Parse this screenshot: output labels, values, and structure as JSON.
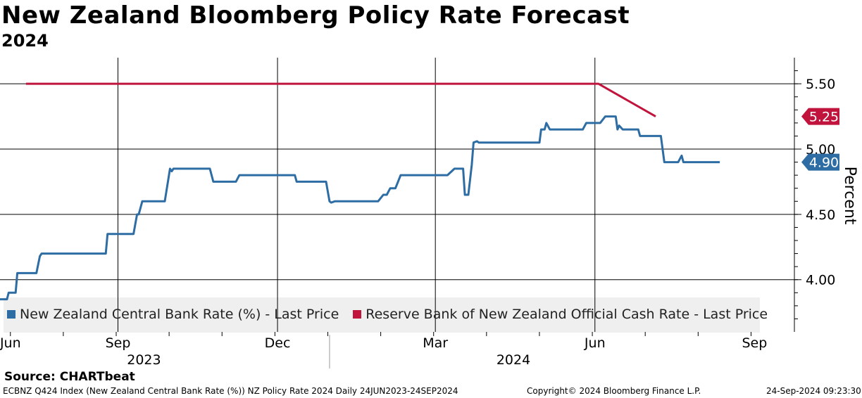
{
  "header": {
    "title": "New Zealand Bloomberg Policy Rate Forecast",
    "subtitle": "2024"
  },
  "source_label": "Source:  CHARTbeat",
  "footer": {
    "left": "ECBNZ Q424 Index (New Zealand Central Bank Rate (%)) NZ Policy Rate 2024  Daily 24JUN2023-24SEP2024",
    "middle": "Copyright© 2024 Bloomberg Finance L.P.",
    "right": "24-Sep-2024 09:23:30"
  },
  "colors": {
    "blue": "#2e6da4",
    "red": "#c0143c",
    "grid": "#000000",
    "legend_bg": "#efefef"
  },
  "chart_data": {
    "type": "line",
    "title": "New Zealand Bloomberg Policy Rate Forecast",
    "subtitle": "2024",
    "ylabel": "Percent",
    "ylim": [
      3.6,
      5.7
    ],
    "y_axis_side": "right",
    "y_ticks": [
      4.0,
      4.5,
      5.0,
      5.5
    ],
    "y_tick_labels": [
      "4.00",
      "4.50",
      "5.00",
      "5.50"
    ],
    "xlim": [
      0,
      458
    ],
    "x_ticks": [
      {
        "label": "Jun",
        "day": 6
      },
      {
        "label": "Sep",
        "day": 68
      },
      {
        "label": "Dec",
        "day": 160
      },
      {
        "label": "Mar",
        "day": 251
      },
      {
        "label": "Jun",
        "day": 343
      },
      {
        "label": "Sep",
        "day": 435
      }
    ],
    "year_labels": [
      {
        "label": "2023",
        "day": 83
      },
      {
        "label": "2024",
        "day": 296
      }
    ],
    "year_divider_day": 190,
    "vertical_grid_days": [
      68,
      160,
      251,
      343
    ],
    "series": [
      {
        "name": "New Zealand Central Bank Rate (%) - Last Price",
        "color": "#2e6da4",
        "last_value_label": "4.90",
        "points": [
          [
            0,
            3.85
          ],
          [
            4,
            3.85
          ],
          [
            5,
            3.9
          ],
          [
            9,
            3.9
          ],
          [
            10,
            4.05
          ],
          [
            21,
            4.05
          ],
          [
            23,
            4.18
          ],
          [
            24,
            4.2
          ],
          [
            61,
            4.2
          ],
          [
            62,
            4.35
          ],
          [
            77,
            4.35
          ],
          [
            79,
            4.5
          ],
          [
            80,
            4.5
          ],
          [
            82,
            4.6
          ],
          [
            95,
            4.6
          ],
          [
            98,
            4.85
          ],
          [
            99,
            4.83
          ],
          [
            100,
            4.85
          ],
          [
            121,
            4.85
          ],
          [
            123,
            4.75
          ],
          [
            136,
            4.75
          ],
          [
            138,
            4.8
          ],
          [
            156,
            4.8
          ],
          [
            157,
            4.8
          ],
          [
            170,
            4.8
          ],
          [
            171,
            4.75
          ],
          [
            188,
            4.75
          ],
          [
            190,
            4.6
          ],
          [
            191,
            4.59
          ],
          [
            193,
            4.6
          ],
          [
            218,
            4.6
          ],
          [
            221,
            4.65
          ],
          [
            223,
            4.65
          ],
          [
            225,
            4.7
          ],
          [
            228,
            4.7
          ],
          [
            231,
            4.8
          ],
          [
            258,
            4.8
          ],
          [
            262,
            4.85
          ],
          [
            267,
            4.85
          ],
          [
            268,
            4.65
          ],
          [
            270,
            4.65
          ],
          [
            272,
            4.88
          ],
          [
            273,
            5.05
          ],
          [
            275,
            5.06
          ],
          [
            276,
            5.05
          ],
          [
            311,
            5.05
          ],
          [
            312,
            5.15
          ],
          [
            314,
            5.15
          ],
          [
            315,
            5.2
          ],
          [
            317,
            5.15
          ],
          [
            336,
            5.15
          ],
          [
            338,
            5.2
          ],
          [
            346,
            5.2
          ],
          [
            349,
            5.25
          ],
          [
            355,
            5.25
          ],
          [
            356,
            5.15
          ],
          [
            357,
            5.18
          ],
          [
            359,
            5.15
          ],
          [
            368,
            5.15
          ],
          [
            369,
            5.1
          ],
          [
            381,
            5.1
          ],
          [
            383,
            4.9
          ],
          [
            391,
            4.9
          ],
          [
            393,
            4.95
          ],
          [
            394,
            4.9
          ],
          [
            415,
            4.9
          ]
        ]
      },
      {
        "name": "Reserve Bank of New Zealand Official Cash Rate - Last Price",
        "color": "#c0143c",
        "last_value_label": "5.25",
        "points": [
          [
            15,
            5.5
          ],
          [
            345,
            5.5
          ],
          [
            378,
            5.25
          ]
        ]
      }
    ]
  }
}
